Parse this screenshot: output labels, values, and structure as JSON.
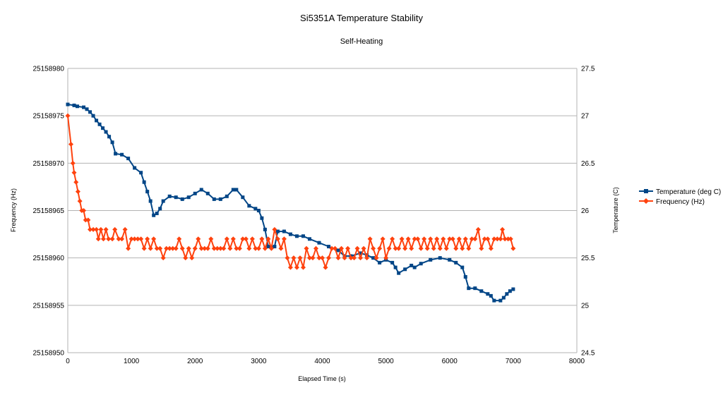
{
  "chart_data": {
    "type": "line",
    "title": "Si5351A Temperature Stability",
    "subtitle": "Self-Heating",
    "xlabel": "Elapsed Time (s)",
    "ylabel": "Frequency (Hz)",
    "y2label": "Temperature (C)",
    "xlim": [
      0,
      8000
    ],
    "xticks": [
      "0",
      "1000",
      "2000",
      "3000",
      "4000",
      "5000",
      "6000",
      "7000",
      "8000"
    ],
    "ylim": [
      25158950,
      25158980
    ],
    "yticks": [
      "25158950",
      "25158955",
      "25158960",
      "25158965",
      "25158970",
      "25158975",
      "25158980"
    ],
    "y2lim": [
      24.5,
      27.5
    ],
    "y2ticks": [
      "24.5",
      "25",
      "25.5",
      "26",
      "26.5",
      "27",
      "27.5"
    ],
    "grid": "horizontal",
    "legend_position": "right",
    "series": [
      {
        "name": "Temperature (deg C)",
        "axis": "right",
        "color": "#004586",
        "marker": "square",
        "points": [
          [
            0,
            27.12
          ],
          [
            100,
            27.11
          ],
          [
            150,
            27.1
          ],
          [
            250,
            27.09
          ],
          [
            300,
            27.07
          ],
          [
            350,
            27.04
          ],
          [
            400,
            27.0
          ],
          [
            450,
            26.95
          ],
          [
            500,
            26.91
          ],
          [
            550,
            26.87
          ],
          [
            600,
            26.83
          ],
          [
            650,
            26.78
          ],
          [
            700,
            26.72
          ],
          [
            750,
            26.6
          ],
          [
            850,
            26.59
          ],
          [
            950,
            26.55
          ],
          [
            1050,
            26.45
          ],
          [
            1150,
            26.4
          ],
          [
            1200,
            26.3
          ],
          [
            1250,
            26.2
          ],
          [
            1300,
            26.1
          ],
          [
            1350,
            25.95
          ],
          [
            1400,
            25.97
          ],
          [
            1450,
            26.02
          ],
          [
            1500,
            26.1
          ],
          [
            1600,
            26.15
          ],
          [
            1700,
            26.14
          ],
          [
            1800,
            26.12
          ],
          [
            1900,
            26.14
          ],
          [
            2000,
            26.18
          ],
          [
            2100,
            26.22
          ],
          [
            2200,
            26.18
          ],
          [
            2300,
            26.12
          ],
          [
            2400,
            26.12
          ],
          [
            2500,
            26.15
          ],
          [
            2600,
            26.22
          ],
          [
            2650,
            26.22
          ],
          [
            2750,
            26.14
          ],
          [
            2850,
            26.05
          ],
          [
            2950,
            26.02
          ],
          [
            3000,
            26.0
          ],
          [
            3050,
            25.92
          ],
          [
            3100,
            25.8
          ],
          [
            3150,
            25.62
          ],
          [
            3250,
            25.62
          ],
          [
            3300,
            25.78
          ],
          [
            3400,
            25.78
          ],
          [
            3500,
            25.75
          ],
          [
            3600,
            25.73
          ],
          [
            3700,
            25.73
          ],
          [
            3800,
            25.7
          ],
          [
            3950,
            25.66
          ],
          [
            4100,
            25.62
          ],
          [
            4250,
            25.58
          ],
          [
            4350,
            25.52
          ],
          [
            4450,
            25.52
          ],
          [
            4600,
            25.55
          ],
          [
            4700,
            25.53
          ],
          [
            4800,
            25.5
          ],
          [
            4900,
            25.45
          ],
          [
            5000,
            25.48
          ],
          [
            5100,
            25.45
          ],
          [
            5150,
            25.4
          ],
          [
            5200,
            25.34
          ],
          [
            5300,
            25.38
          ],
          [
            5400,
            25.42
          ],
          [
            5450,
            25.4
          ],
          [
            5550,
            25.44
          ],
          [
            5700,
            25.48
          ],
          [
            5850,
            25.5
          ],
          [
            6000,
            25.48
          ],
          [
            6100,
            25.45
          ],
          [
            6200,
            25.4
          ],
          [
            6250,
            25.3
          ],
          [
            6300,
            25.18
          ],
          [
            6400,
            25.18
          ],
          [
            6500,
            25.15
          ],
          [
            6600,
            25.12
          ],
          [
            6650,
            25.1
          ],
          [
            6700,
            25.05
          ],
          [
            6800,
            25.05
          ],
          [
            6850,
            25.08
          ],
          [
            6900,
            25.12
          ],
          [
            6950,
            25.15
          ],
          [
            7000,
            25.17
          ]
        ]
      },
      {
        "name": "Frequency (Hz)",
        "axis": "left",
        "color": "#ff420e",
        "marker": "diamond",
        "points": [
          [
            0,
            25158975
          ],
          [
            50,
            25158972
          ],
          [
            80,
            25158970
          ],
          [
            100,
            25158969
          ],
          [
            130,
            25158968
          ],
          [
            160,
            25158967
          ],
          [
            190,
            25158966
          ],
          [
            220,
            25158965
          ],
          [
            250,
            25158965
          ],
          [
            280,
            25158964
          ],
          [
            320,
            25158964
          ],
          [
            350,
            25158963
          ],
          [
            400,
            25158963
          ],
          [
            450,
            25158963
          ],
          [
            480,
            25158962
          ],
          [
            520,
            25158963
          ],
          [
            560,
            25158962
          ],
          [
            600,
            25158963
          ],
          [
            640,
            25158962
          ],
          [
            700,
            25158962
          ],
          [
            740,
            25158963
          ],
          [
            800,
            25158962
          ],
          [
            850,
            25158962
          ],
          [
            900,
            25158963
          ],
          [
            950,
            25158961
          ],
          [
            1000,
            25158962
          ],
          [
            1050,
            25158962
          ],
          [
            1100,
            25158962
          ],
          [
            1150,
            25158962
          ],
          [
            1200,
            25158961
          ],
          [
            1250,
            25158962
          ],
          [
            1300,
            25158961
          ],
          [
            1350,
            25158962
          ],
          [
            1400,
            25158961
          ],
          [
            1450,
            25158961
          ],
          [
            1500,
            25158960
          ],
          [
            1550,
            25158961
          ],
          [
            1600,
            25158961
          ],
          [
            1650,
            25158961
          ],
          [
            1700,
            25158961
          ],
          [
            1750,
            25158962
          ],
          [
            1800,
            25158961
          ],
          [
            1850,
            25158960
          ],
          [
            1900,
            25158961
          ],
          [
            1950,
            25158960
          ],
          [
            2000,
            25158961
          ],
          [
            2050,
            25158962
          ],
          [
            2100,
            25158961
          ],
          [
            2150,
            25158961
          ],
          [
            2200,
            25158961
          ],
          [
            2250,
            25158962
          ],
          [
            2300,
            25158961
          ],
          [
            2350,
            25158961
          ],
          [
            2400,
            25158961
          ],
          [
            2450,
            25158961
          ],
          [
            2500,
            25158962
          ],
          [
            2550,
            25158961
          ],
          [
            2600,
            25158962
          ],
          [
            2650,
            25158961
          ],
          [
            2700,
            25158961
          ],
          [
            2750,
            25158962
          ],
          [
            2800,
            25158962
          ],
          [
            2850,
            25158961
          ],
          [
            2900,
            25158962
          ],
          [
            2950,
            25158961
          ],
          [
            3000,
            25158961
          ],
          [
            3050,
            25158962
          ],
          [
            3100,
            25158961
          ],
          [
            3150,
            25158962
          ],
          [
            3200,
            25158961
          ],
          [
            3250,
            25158963
          ],
          [
            3300,
            25158962
          ],
          [
            3350,
            25158961
          ],
          [
            3400,
            25158962
          ],
          [
            3450,
            25158960
          ],
          [
            3500,
            25158959
          ],
          [
            3550,
            25158960
          ],
          [
            3600,
            25158959
          ],
          [
            3650,
            25158960
          ],
          [
            3700,
            25158959
          ],
          [
            3750,
            25158961
          ],
          [
            3800,
            25158960
          ],
          [
            3850,
            25158960
          ],
          [
            3900,
            25158961
          ],
          [
            3950,
            25158960
          ],
          [
            4000,
            25158960
          ],
          [
            4050,
            25158959
          ],
          [
            4100,
            25158960
          ],
          [
            4150,
            25158961
          ],
          [
            4200,
            25158961
          ],
          [
            4250,
            25158960
          ],
          [
            4300,
            25158961
          ],
          [
            4350,
            25158960
          ],
          [
            4400,
            25158961
          ],
          [
            4450,
            25158960
          ],
          [
            4500,
            25158960
          ],
          [
            4550,
            25158961
          ],
          [
            4600,
            25158960
          ],
          [
            4650,
            25158961
          ],
          [
            4700,
            25158960
          ],
          [
            4750,
            25158962
          ],
          [
            4800,
            25158961
          ],
          [
            4850,
            25158960
          ],
          [
            4900,
            25158961
          ],
          [
            4950,
            25158962
          ],
          [
            5000,
            25158960
          ],
          [
            5050,
            25158961
          ],
          [
            5100,
            25158962
          ],
          [
            5150,
            25158961
          ],
          [
            5200,
            25158961
          ],
          [
            5250,
            25158962
          ],
          [
            5300,
            25158961
          ],
          [
            5350,
            25158962
          ],
          [
            5400,
            25158961
          ],
          [
            5450,
            25158962
          ],
          [
            5500,
            25158962
          ],
          [
            5550,
            25158961
          ],
          [
            5600,
            25158962
          ],
          [
            5650,
            25158961
          ],
          [
            5700,
            25158962
          ],
          [
            5750,
            25158961
          ],
          [
            5800,
            25158962
          ],
          [
            5850,
            25158961
          ],
          [
            5900,
            25158962
          ],
          [
            5950,
            25158961
          ],
          [
            6000,
            25158962
          ],
          [
            6050,
            25158962
          ],
          [
            6100,
            25158961
          ],
          [
            6150,
            25158962
          ],
          [
            6200,
            25158961
          ],
          [
            6250,
            25158962
          ],
          [
            6300,
            25158961
          ],
          [
            6350,
            25158962
          ],
          [
            6400,
            25158962
          ],
          [
            6450,
            25158963
          ],
          [
            6500,
            25158961
          ],
          [
            6550,
            25158962
          ],
          [
            6600,
            25158962
          ],
          [
            6650,
            25158961
          ],
          [
            6700,
            25158962
          ],
          [
            6750,
            25158962
          ],
          [
            6800,
            25158962
          ],
          [
            6830,
            25158963
          ],
          [
            6870,
            25158962
          ],
          [
            6920,
            25158962
          ],
          [
            6960,
            25158962
          ],
          [
            7000,
            25158961
          ]
        ]
      }
    ]
  }
}
